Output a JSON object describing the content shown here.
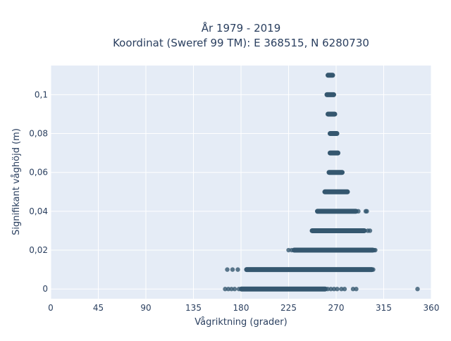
{
  "chart_data": {
    "type": "scatter",
    "title": "År 1979 - 2019",
    "subtitle": "Koordinat (Sweref 99 TM): E 368515, N 6280730",
    "xlabel": "Vågriktning (grader)",
    "ylabel": "Signifikant våghöjd (m)",
    "xlim": [
      0,
      360
    ],
    "ylim": [
      -0.005,
      0.115
    ],
    "xticks": [
      0,
      45,
      90,
      135,
      180,
      225,
      270,
      315,
      360
    ],
    "xtick_labels": [
      "0",
      "45",
      "90",
      "135",
      "180",
      "225",
      "270",
      "315",
      "360"
    ],
    "yticks": [
      0,
      0.02,
      0.04,
      0.06,
      0.08,
      0.1
    ],
    "ytick_labels": [
      "0",
      "0,02",
      "0,04",
      "0,06",
      "0,08",
      "0,1"
    ],
    "grid": true,
    "marker_color": "#35576f",
    "background_color": "#e5ecf6",
    "bands": [
      {
        "y": 0.11,
        "x_start": 262,
        "x_end": 267
      },
      {
        "y": 0.1,
        "x_start": 261,
        "x_end": 268
      },
      {
        "y": 0.09,
        "x_start": 262,
        "x_end": 269
      },
      {
        "y": 0.08,
        "x_start": 264,
        "x_end": 271
      },
      {
        "y": 0.07,
        "x_start": 264,
        "x_end": 272
      },
      {
        "y": 0.06,
        "x_start": 263,
        "x_end": 276
      },
      {
        "y": 0.05,
        "x_start": 259,
        "x_end": 281
      },
      {
        "y": 0.04,
        "x_start": 252,
        "x_end": 289
      },
      {
        "y": 0.03,
        "x_start": 247,
        "x_end": 297
      },
      {
        "y": 0.02,
        "x_start": 230,
        "x_end": 305
      },
      {
        "y": 0.01,
        "x_start": 185,
        "x_end": 304
      },
      {
        "y": 0.0,
        "x_start": 180,
        "x_end": 260
      }
    ],
    "points": [
      {
        "x": 291,
        "y": 0.04
      },
      {
        "x": 298,
        "y": 0.04
      },
      {
        "x": 299,
        "y": 0.04
      },
      {
        "x": 300,
        "y": 0.03
      },
      {
        "x": 302,
        "y": 0.03
      },
      {
        "x": 225,
        "y": 0.02
      },
      {
        "x": 228,
        "y": 0.02
      },
      {
        "x": 306,
        "y": 0.02
      },
      {
        "x": 307,
        "y": 0.02
      },
      {
        "x": 167,
        "y": 0.01
      },
      {
        "x": 172,
        "y": 0.01
      },
      {
        "x": 177,
        "y": 0.01
      },
      {
        "x": 305,
        "y": 0.01
      },
      {
        "x": 165,
        "y": 0.0
      },
      {
        "x": 168,
        "y": 0.0
      },
      {
        "x": 171,
        "y": 0.0
      },
      {
        "x": 174,
        "y": 0.0
      },
      {
        "x": 178,
        "y": 0.0
      },
      {
        "x": 262,
        "y": 0.0
      },
      {
        "x": 265,
        "y": 0.0
      },
      {
        "x": 268,
        "y": 0.0
      },
      {
        "x": 271,
        "y": 0.0
      },
      {
        "x": 275,
        "y": 0.0
      },
      {
        "x": 278,
        "y": 0.0
      },
      {
        "x": 286,
        "y": 0.0
      },
      {
        "x": 289,
        "y": 0.0
      },
      {
        "x": 347,
        "y": 0.0
      }
    ]
  }
}
